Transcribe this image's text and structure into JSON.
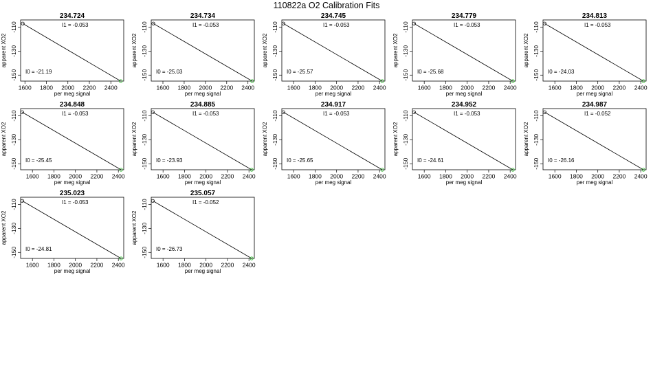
{
  "title": "110822a   O2 Calibration Fits",
  "chart_data": [
    {
      "type": "line",
      "title": "234.724",
      "xlabel": "per meg signal",
      "ylabel": "apparent XO2",
      "xlim": [
        1560,
        2520
      ],
      "ylim": [
        -155,
        -104
      ],
      "xticks": [
        1600,
        1800,
        2000,
        2200,
        2400
      ],
      "yticks": [
        -110,
        -130,
        -150
      ],
      "points": [
        {
          "x": 1580,
          "y": -107,
          "color": "#222222"
        },
        {
          "x": 2492,
          "y": -155,
          "color": "#33bb33"
        }
      ],
      "line": {
        "x": [
          1580,
          2492
        ],
        "y": [
          -107,
          -155
        ]
      },
      "I1": "I1 =  -0.053",
      "I0": "I0 =  -21.19"
    },
    {
      "type": "line",
      "title": "234.734",
      "xlabel": "per meg signal",
      "ylabel": "apparent XO2",
      "xlim": [
        1490,
        2460
      ],
      "ylim": [
        -155,
        -104
      ],
      "xticks": [
        1600,
        1800,
        2000,
        2200,
        2400
      ],
      "yticks": [
        -110,
        -130,
        -150
      ],
      "points": [
        {
          "x": 1510,
          "y": -107,
          "color": "#222222"
        },
        {
          "x": 2440,
          "y": -155,
          "color": "#33bb33"
        }
      ],
      "line": {
        "x": [
          1510,
          2440
        ],
        "y": [
          -107,
          -155
        ]
      },
      "I1": "I1 =  -0.053",
      "I0": "I0 =  -25.03"
    },
    {
      "type": "line",
      "title": "234.745",
      "xlabel": "per meg signal",
      "ylabel": "apparent XO2",
      "xlim": [
        1490,
        2450
      ],
      "ylim": [
        -155,
        -104
      ],
      "xticks": [
        1600,
        1800,
        2000,
        2200,
        2400
      ],
      "yticks": [
        -110,
        -130,
        -150
      ],
      "points": [
        {
          "x": 1505,
          "y": -107,
          "color": "#222222"
        },
        {
          "x": 2425,
          "y": -155,
          "color": "#33bb33"
        }
      ],
      "line": {
        "x": [
          1505,
          2425
        ],
        "y": [
          -107,
          -155
        ]
      },
      "I1": "I1 =  -0.053",
      "I0": "I0 =  -25.57"
    },
    {
      "type": "line",
      "title": "234.779",
      "xlabel": "per meg signal",
      "ylabel": "apparent XO2",
      "xlim": [
        1490,
        2450
      ],
      "ylim": [
        -155,
        -104
      ],
      "xticks": [
        1600,
        1800,
        2000,
        2200,
        2400
      ],
      "yticks": [
        -110,
        -130,
        -150
      ],
      "points": [
        {
          "x": 1505,
          "y": -107,
          "color": "#222222"
        },
        {
          "x": 2425,
          "y": -155,
          "color": "#33bb33"
        }
      ],
      "line": {
        "x": [
          1505,
          2425
        ],
        "y": [
          -107,
          -155
        ]
      },
      "I1": "I1 =  -0.053",
      "I0": "I0 =  -25.68"
    },
    {
      "type": "line",
      "title": "234.813",
      "xlabel": "per meg signal",
      "ylabel": "apparent XO2",
      "xlim": [
        1490,
        2450
      ],
      "ylim": [
        -155,
        -104
      ],
      "xticks": [
        1600,
        1800,
        2000,
        2200,
        2400
      ],
      "yticks": [
        -110,
        -130,
        -150
      ],
      "points": [
        {
          "x": 1505,
          "y": -107,
          "color": "#222222"
        },
        {
          "x": 2425,
          "y": -155,
          "color": "#33bb33"
        }
      ],
      "line": {
        "x": [
          1505,
          2425
        ],
        "y": [
          -107,
          -155
        ]
      },
      "I1": "I1 =  -0.053",
      "I0": "I0 =  -24.03"
    },
    {
      "type": "line",
      "title": "234.848",
      "xlabel": "per meg signal",
      "ylabel": "apparent XO2",
      "xlim": [
        1490,
        2450
      ],
      "ylim": [
        -155,
        -104
      ],
      "xticks": [
        1600,
        1800,
        2000,
        2200,
        2400
      ],
      "yticks": [
        -110,
        -130,
        -150
      ],
      "points": [
        {
          "x": 1505,
          "y": -107,
          "color": "#222222"
        },
        {
          "x": 2425,
          "y": -155,
          "color": "#33bb33"
        }
      ],
      "line": {
        "x": [
          1505,
          2425
        ],
        "y": [
          -107,
          -155
        ]
      },
      "I1": "I1 =  -0.053",
      "I0": "I0 =  -25.45"
    },
    {
      "type": "line",
      "title": "234.885",
      "xlabel": "per meg signal",
      "ylabel": "apparent XO2",
      "xlim": [
        1490,
        2450
      ],
      "ylim": [
        -155,
        -104
      ],
      "xticks": [
        1600,
        1800,
        2000,
        2200,
        2400
      ],
      "yticks": [
        -110,
        -130,
        -150
      ],
      "points": [
        {
          "x": 1505,
          "y": -107,
          "color": "#222222"
        },
        {
          "x": 2425,
          "y": -155,
          "color": "#33bb33"
        }
      ],
      "line": {
        "x": [
          1505,
          2425
        ],
        "y": [
          -107,
          -155
        ]
      },
      "I1": "I1 =  -0.053",
      "I0": "I0 =  -23.93"
    },
    {
      "type": "line",
      "title": "234.917",
      "xlabel": "per meg signal",
      "ylabel": "apparent XO2",
      "xlim": [
        1490,
        2450
      ],
      "ylim": [
        -155,
        -104
      ],
      "xticks": [
        1600,
        1800,
        2000,
        2200,
        2400
      ],
      "yticks": [
        -110,
        -130,
        -150
      ],
      "points": [
        {
          "x": 1505,
          "y": -107,
          "color": "#222222"
        },
        {
          "x": 2425,
          "y": -155,
          "color": "#33bb33"
        }
      ],
      "line": {
        "x": [
          1505,
          2425
        ],
        "y": [
          -107,
          -155
        ]
      },
      "I1": "I1 =  -0.053",
      "I0": "I0 =  -25.65"
    },
    {
      "type": "line",
      "title": "234.952",
      "xlabel": "per meg signal",
      "ylabel": "apparent XO2",
      "xlim": [
        1490,
        2450
      ],
      "ylim": [
        -155,
        -104
      ],
      "xticks": [
        1600,
        1800,
        2000,
        2200,
        2400
      ],
      "yticks": [
        -110,
        -130,
        -150
      ],
      "points": [
        {
          "x": 1505,
          "y": -107,
          "color": "#222222"
        },
        {
          "x": 2425,
          "y": -155,
          "color": "#33bb33"
        }
      ],
      "line": {
        "x": [
          1505,
          2425
        ],
        "y": [
          -107,
          -155
        ]
      },
      "I1": "I1 =  -0.053",
      "I0": "I0 =  -24.61"
    },
    {
      "type": "line",
      "title": "234.987",
      "xlabel": "per meg signal",
      "ylabel": "apparent XO2",
      "xlim": [
        1490,
        2450
      ],
      "ylim": [
        -155,
        -104
      ],
      "xticks": [
        1600,
        1800,
        2000,
        2200,
        2400
      ],
      "yticks": [
        -110,
        -130,
        -150
      ],
      "points": [
        {
          "x": 1505,
          "y": -107,
          "color": "#222222"
        },
        {
          "x": 2425,
          "y": -155,
          "color": "#33bb33"
        }
      ],
      "line": {
        "x": [
          1505,
          2425
        ],
        "y": [
          -107,
          -155
        ]
      },
      "I1": "I1 =  -0.052",
      "I0": "I0 =  -26.16"
    },
    {
      "type": "line",
      "title": "235.023",
      "xlabel": "per meg signal",
      "ylabel": "apparent XO2",
      "xlim": [
        1490,
        2450
      ],
      "ylim": [
        -155,
        -104
      ],
      "xticks": [
        1600,
        1800,
        2000,
        2200,
        2400
      ],
      "yticks": [
        -110,
        -130,
        -150
      ],
      "points": [
        {
          "x": 1505,
          "y": -107,
          "color": "#222222"
        },
        {
          "x": 2425,
          "y": -155,
          "color": "#33bb33"
        }
      ],
      "line": {
        "x": [
          1505,
          2425
        ],
        "y": [
          -107,
          -155
        ]
      },
      "I1": "I1 =  -0.053",
      "I0": "I0 =  -24.81"
    },
    {
      "type": "line",
      "title": "235.057",
      "xlabel": "per meg signal",
      "ylabel": "apparent XO2",
      "xlim": [
        1490,
        2450
      ],
      "ylim": [
        -155,
        -104
      ],
      "xticks": [
        1600,
        1800,
        2000,
        2200,
        2400
      ],
      "yticks": [
        -110,
        -130,
        -150
      ],
      "points": [
        {
          "x": 1505,
          "y": -107,
          "color": "#222222"
        },
        {
          "x": 2425,
          "y": -155,
          "color": "#33bb33"
        }
      ],
      "line": {
        "x": [
          1505,
          2425
        ],
        "y": [
          -107,
          -155
        ]
      },
      "I1": "I1 =  -0.052",
      "I0": "I0 =  -26.73"
    }
  ]
}
